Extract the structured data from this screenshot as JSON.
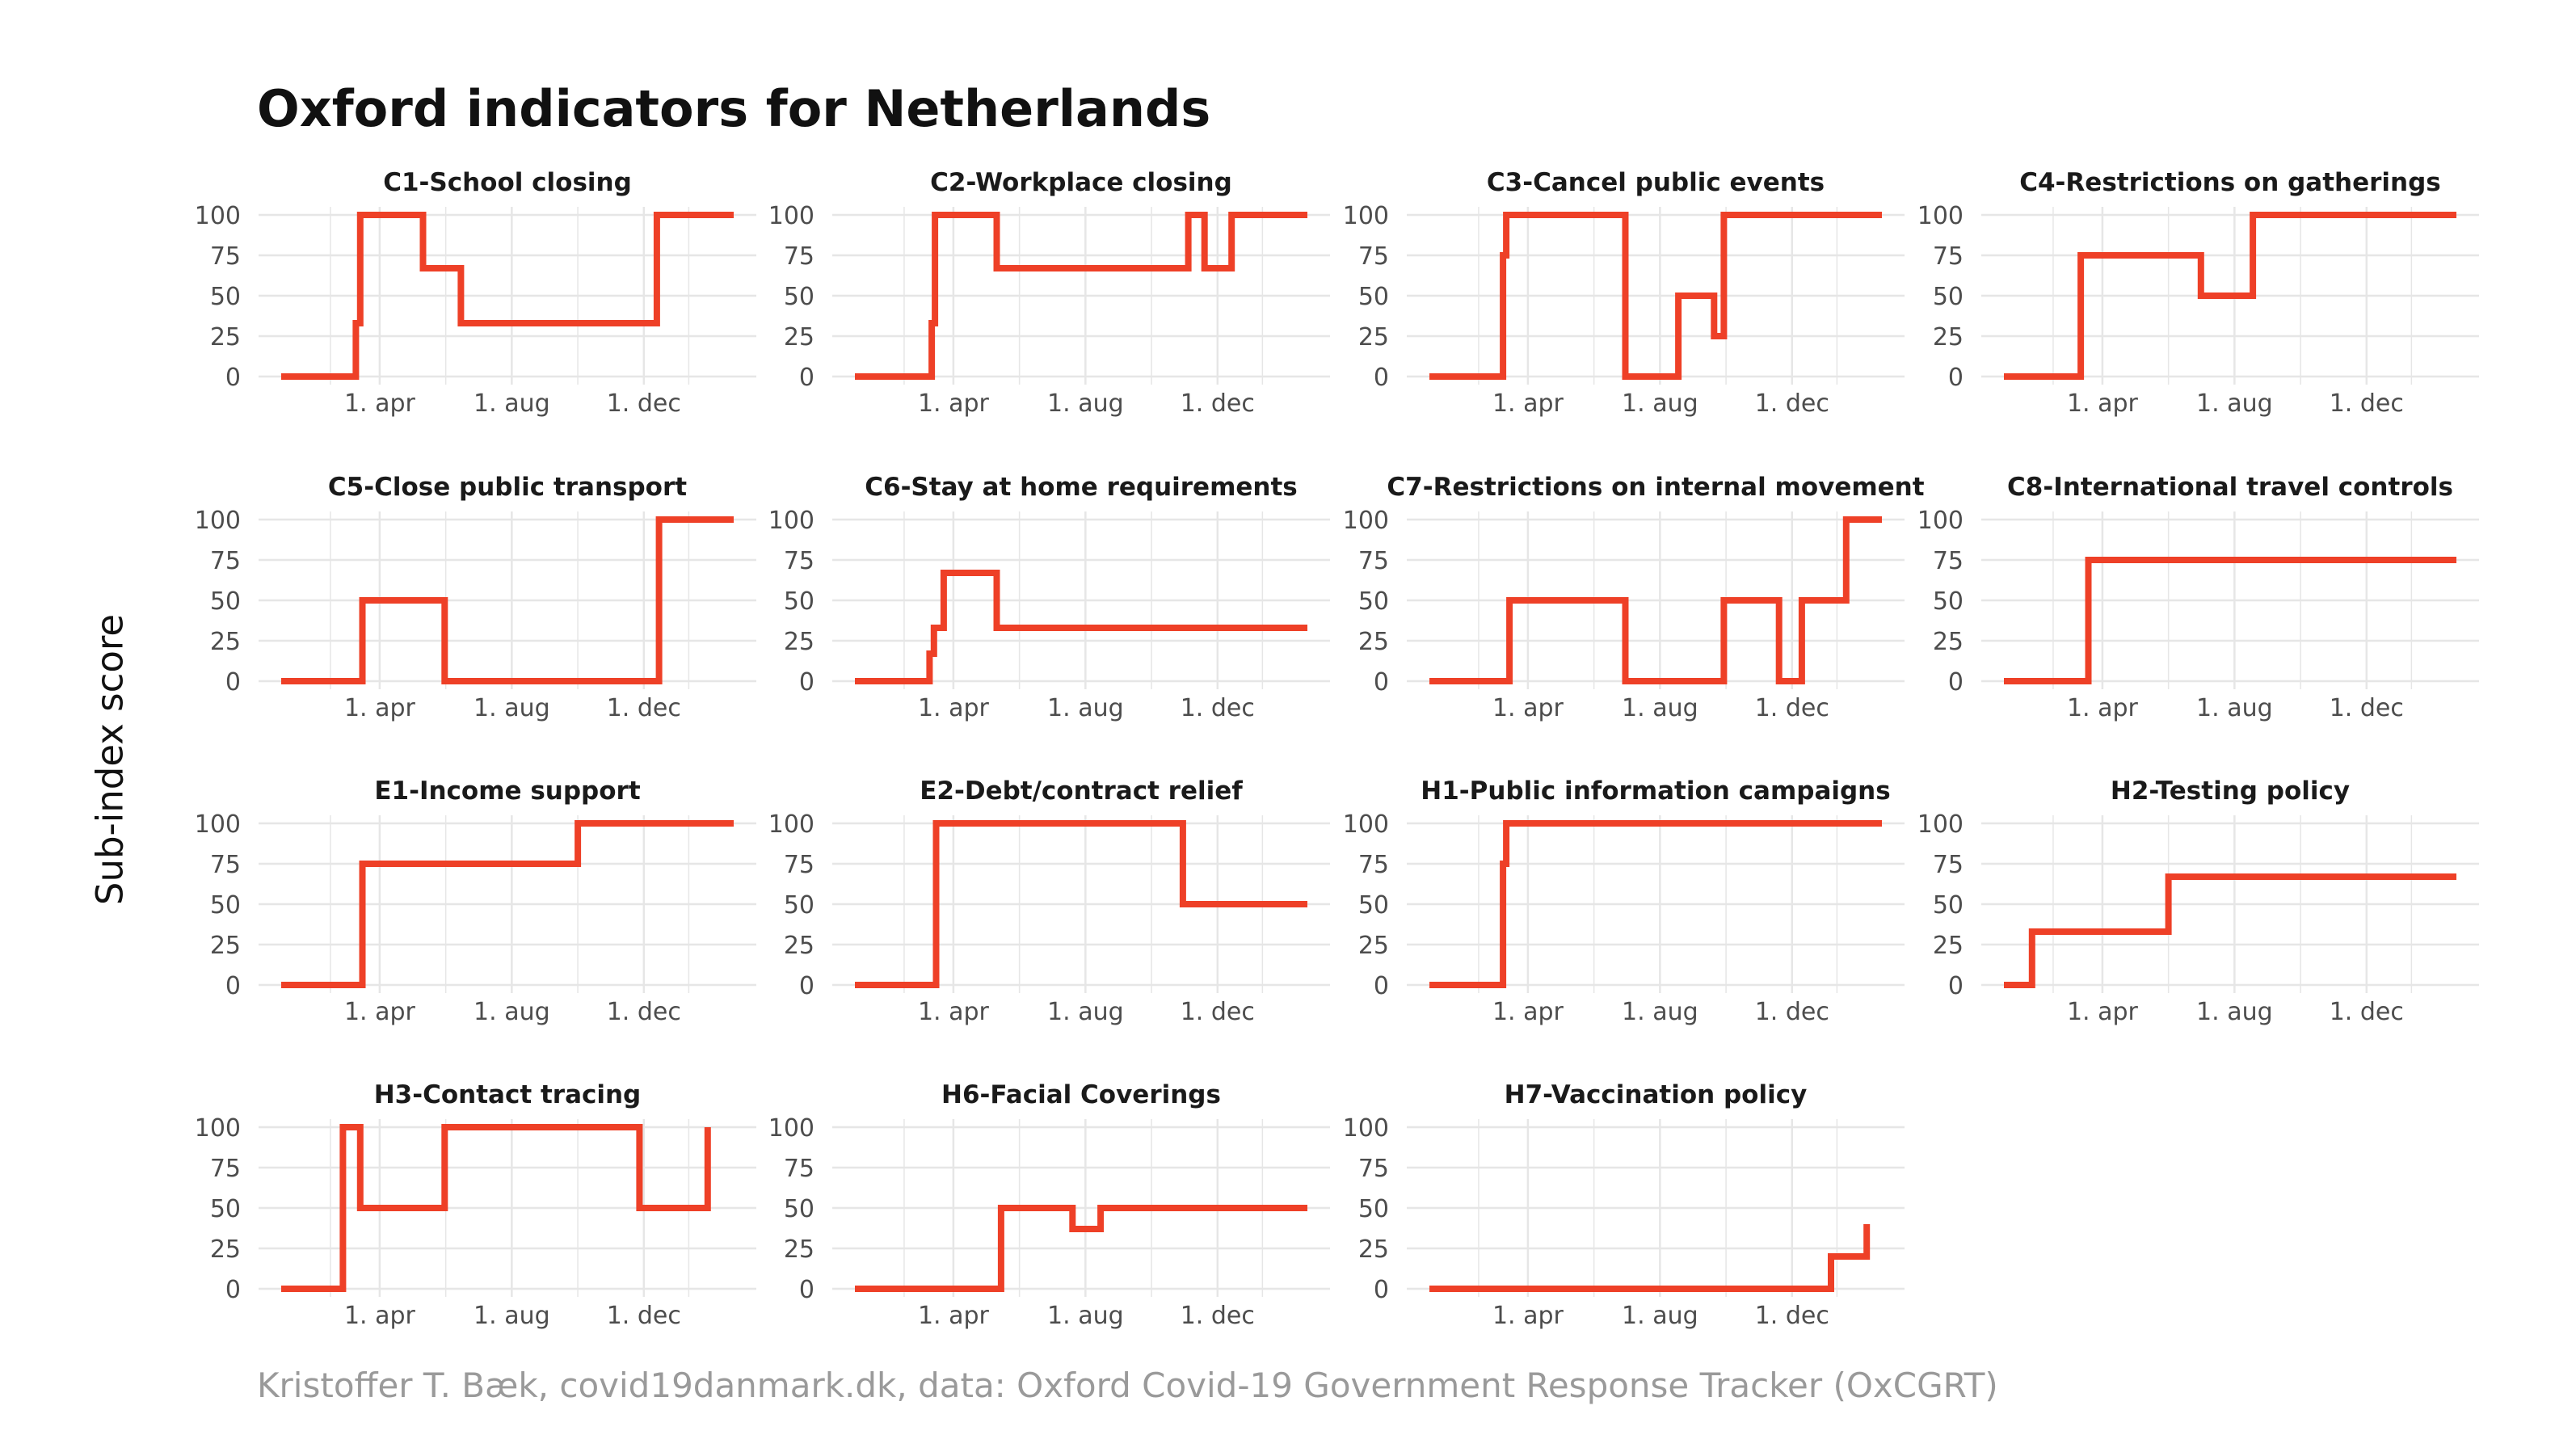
{
  "title": "Oxford indicators for Netherlands",
  "ylabel": "Sub-index score",
  "caption": "Kristoffer T. Bæk, covid19danmark.dk, data: Oxford Covid-19 Government Response Tracker (OxCGRT)",
  "colors": {
    "line": "#EE4027",
    "grid": "#e6e6e6",
    "text": "#4d4d4d",
    "strip": "#1a1a1a"
  },
  "chart_data": {
    "type": "line",
    "layout": "facet 4x4 (15 panels)",
    "x_domain": [
      "2020-01-01",
      "2021-02-22"
    ],
    "x_ticks": [
      {
        "date": "2020-04-01",
        "label": "1. apr"
      },
      {
        "date": "2020-08-01",
        "label": "1. aug"
      },
      {
        "date": "2020-12-01",
        "label": "1. dec"
      }
    ],
    "ylim": [
      0,
      100
    ],
    "y_ticks": [
      0,
      25,
      50,
      75,
      100
    ],
    "grid": true,
    "panels": [
      {
        "title": "C1-School closing",
        "points": [
          [
            "2020-01-01",
            0
          ],
          [
            "2020-03-10",
            0
          ],
          [
            "2020-03-10",
            33
          ],
          [
            "2020-03-14",
            33
          ],
          [
            "2020-03-14",
            100
          ],
          [
            "2020-05-11",
            100
          ],
          [
            "2020-05-11",
            67
          ],
          [
            "2020-06-15",
            67
          ],
          [
            "2020-06-15",
            33
          ],
          [
            "2020-12-13",
            33
          ],
          [
            "2020-12-13",
            100
          ],
          [
            "2021-02-22",
            100
          ]
        ]
      },
      {
        "title": "C2-Workplace closing",
        "points": [
          [
            "2020-01-01",
            0
          ],
          [
            "2020-03-12",
            0
          ],
          [
            "2020-03-12",
            33
          ],
          [
            "2020-03-15",
            33
          ],
          [
            "2020-03-15",
            100
          ],
          [
            "2020-05-11",
            100
          ],
          [
            "2020-05-11",
            67
          ],
          [
            "2020-11-04",
            67
          ],
          [
            "2020-11-04",
            100
          ],
          [
            "2020-11-19",
            100
          ],
          [
            "2020-11-19",
            67
          ],
          [
            "2020-12-14",
            67
          ],
          [
            "2020-12-14",
            100
          ],
          [
            "2021-02-22",
            100
          ]
        ]
      },
      {
        "title": "C3-Cancel public events",
        "points": [
          [
            "2020-01-01",
            0
          ],
          [
            "2020-03-09",
            0
          ],
          [
            "2020-03-09",
            75
          ],
          [
            "2020-03-12",
            75
          ],
          [
            "2020-03-12",
            100
          ],
          [
            "2020-06-30",
            100
          ],
          [
            "2020-06-30",
            0
          ],
          [
            "2020-08-18",
            0
          ],
          [
            "2020-08-18",
            50
          ],
          [
            "2020-09-20",
            50
          ],
          [
            "2020-09-20",
            25
          ],
          [
            "2020-09-29",
            25
          ],
          [
            "2020-09-29",
            100
          ],
          [
            "2021-02-22",
            100
          ]
        ]
      },
      {
        "title": "C4-Restrictions on gatherings",
        "points": [
          [
            "2020-01-01",
            0
          ],
          [
            "2020-03-12",
            0
          ],
          [
            "2020-03-12",
            75
          ],
          [
            "2020-07-01",
            75
          ],
          [
            "2020-07-01",
            50
          ],
          [
            "2020-08-18",
            50
          ],
          [
            "2020-08-18",
            100
          ],
          [
            "2021-02-22",
            100
          ]
        ]
      },
      {
        "title": "C5-Close public transport",
        "points": [
          [
            "2020-01-01",
            0
          ],
          [
            "2020-03-16",
            0
          ],
          [
            "2020-03-16",
            50
          ],
          [
            "2020-05-31",
            50
          ],
          [
            "2020-05-31",
            0
          ],
          [
            "2020-12-15",
            0
          ],
          [
            "2020-12-15",
            100
          ],
          [
            "2021-02-22",
            100
          ]
        ]
      },
      {
        "title": "C6-Stay at home requirements",
        "points": [
          [
            "2020-01-01",
            0
          ],
          [
            "2020-03-10",
            0
          ],
          [
            "2020-03-10",
            17
          ],
          [
            "2020-03-14",
            17
          ],
          [
            "2020-03-14",
            33
          ],
          [
            "2020-03-23",
            33
          ],
          [
            "2020-03-23",
            67
          ],
          [
            "2020-05-11",
            67
          ],
          [
            "2020-05-11",
            33
          ],
          [
            "2021-02-22",
            33
          ]
        ]
      },
      {
        "title": "C7-Restrictions on internal movement",
        "points": [
          [
            "2020-01-01",
            0
          ],
          [
            "2020-03-15",
            0
          ],
          [
            "2020-03-15",
            50
          ],
          [
            "2020-06-30",
            50
          ],
          [
            "2020-06-30",
            0
          ],
          [
            "2020-09-29",
            0
          ],
          [
            "2020-09-29",
            50
          ],
          [
            "2020-11-19",
            50
          ],
          [
            "2020-11-19",
            0
          ],
          [
            "2020-12-10",
            0
          ],
          [
            "2020-12-10",
            50
          ],
          [
            "2021-01-20",
            50
          ],
          [
            "2021-01-20",
            100
          ],
          [
            "2021-02-22",
            100
          ]
        ]
      },
      {
        "title": "C8-International travel controls",
        "points": [
          [
            "2020-01-01",
            0
          ],
          [
            "2020-03-19",
            0
          ],
          [
            "2020-03-19",
            75
          ],
          [
            "2021-02-22",
            75
          ]
        ]
      },
      {
        "title": "E1-Income support",
        "points": [
          [
            "2020-01-01",
            0
          ],
          [
            "2020-03-16",
            0
          ],
          [
            "2020-03-16",
            75
          ],
          [
            "2020-10-01",
            75
          ],
          [
            "2020-10-01",
            100
          ],
          [
            "2021-02-22",
            100
          ]
        ]
      },
      {
        "title": "E2-Debt/contract relief",
        "points": [
          [
            "2020-01-01",
            0
          ],
          [
            "2020-03-16",
            0
          ],
          [
            "2020-03-16",
            100
          ],
          [
            "2020-10-30",
            100
          ],
          [
            "2020-10-30",
            50
          ],
          [
            "2021-02-22",
            50
          ]
        ]
      },
      {
        "title": "H1-Public information campaigns",
        "points": [
          [
            "2020-01-01",
            0
          ],
          [
            "2020-03-09",
            0
          ],
          [
            "2020-03-09",
            75
          ],
          [
            "2020-03-12",
            75
          ],
          [
            "2020-03-12",
            100
          ],
          [
            "2021-02-22",
            100
          ]
        ]
      },
      {
        "title": "H2-Testing policy",
        "points": [
          [
            "2020-01-01",
            0
          ],
          [
            "2020-01-27",
            0
          ],
          [
            "2020-01-27",
            33
          ],
          [
            "2020-06-01",
            33
          ],
          [
            "2020-06-01",
            67
          ],
          [
            "2021-02-22",
            67
          ]
        ]
      },
      {
        "title": "H3-Contact tracing",
        "points": [
          [
            "2020-01-01",
            0
          ],
          [
            "2020-02-27",
            0
          ],
          [
            "2020-02-27",
            100
          ],
          [
            "2020-03-14",
            100
          ],
          [
            "2020-03-14",
            50
          ],
          [
            "2020-05-31",
            50
          ],
          [
            "2020-05-31",
            100
          ],
          [
            "2020-11-27",
            100
          ],
          [
            "2020-11-27",
            50
          ],
          [
            "2021-01-29",
            50
          ],
          [
            "2021-01-29",
            100
          ]
        ]
      },
      {
        "title": "H6-Facial Coverings",
        "points": [
          [
            "2020-01-01",
            0
          ],
          [
            "2020-05-15",
            0
          ],
          [
            "2020-05-15",
            50
          ],
          [
            "2020-07-20",
            50
          ],
          [
            "2020-07-20",
            37
          ],
          [
            "2020-08-15",
            37
          ],
          [
            "2020-08-15",
            50
          ],
          [
            "2021-02-22",
            50
          ]
        ]
      },
      {
        "title": "H7-Vaccination policy",
        "points": [
          [
            "2020-01-01",
            0
          ],
          [
            "2021-01-06",
            0
          ],
          [
            "2021-01-06",
            20
          ],
          [
            "2021-02-08",
            20
          ],
          [
            "2021-02-08",
            40
          ],
          [
            "2021-02-08",
            20
          ]
        ]
      }
    ]
  }
}
